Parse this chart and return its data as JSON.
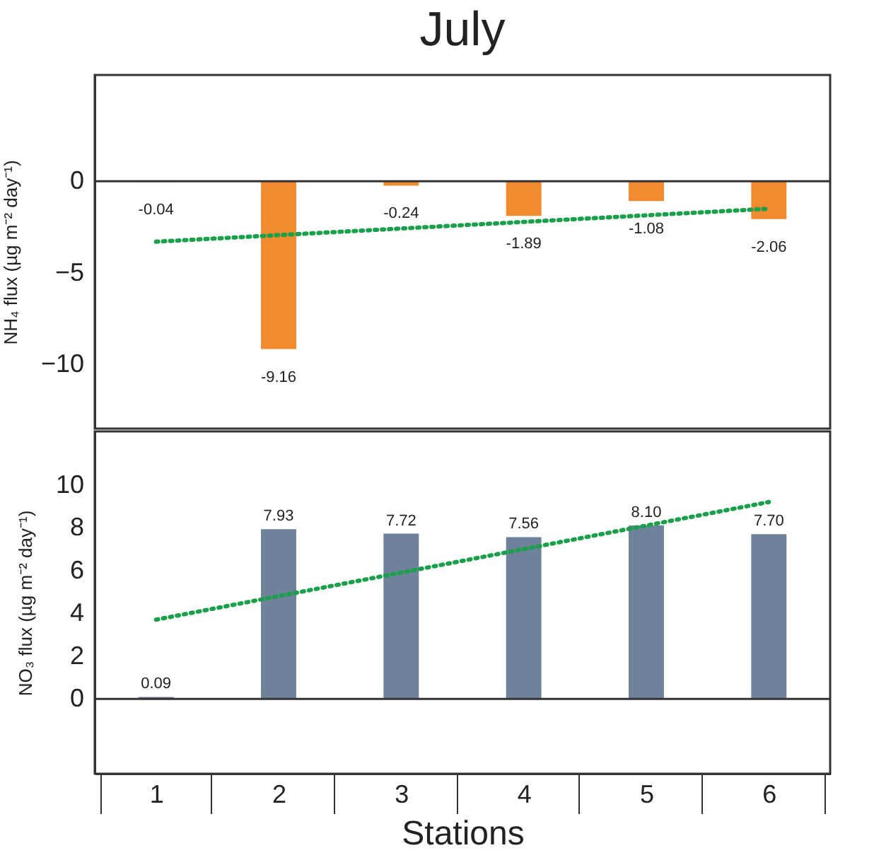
{
  "chart_data": [
    {
      "type": "bar",
      "title": "July",
      "ylabel": "NH₄ flux (µg m⁻² day⁻¹)",
      "categories": [
        "1",
        "2",
        "3",
        "4",
        "5",
        "6"
      ],
      "ylim": [
        -13.5,
        5.8
      ],
      "yticks": [
        -10,
        -5,
        0
      ],
      "tick_labels": "y",
      "grid": false,
      "series": [
        {
          "color": "#f28a30",
          "values": [
            -0.04,
            -9.16,
            -0.24,
            -1.89,
            -1.08,
            -2.06
          ],
          "value_labels": [
            "-0.04",
            "-9.16",
            "-0.24",
            "-1.89",
            "-1.08",
            "-2.06"
          ]
        },
        {
          "type": "line",
          "color": "#1aa04a",
          "line_style": "dotted",
          "marker": "none",
          "x": [
            "1",
            "6"
          ],
          "values": [
            -3.3,
            -1.5
          ]
        }
      ],
      "ref_lines": [
        {
          "axis": "y",
          "value": 0,
          "color": "#333333"
        }
      ]
    },
    {
      "type": "bar",
      "xlabel": "Stations",
      "ylabel": "NO₃ flux (µg m⁻² day⁻¹)",
      "categories": [
        "1",
        "2",
        "3",
        "4",
        "5",
        "6"
      ],
      "ylim": [
        -3.5,
        12.5
      ],
      "yticks": [
        0,
        2,
        4,
        6,
        8,
        10
      ],
      "grid": false,
      "series": [
        {
          "color": "#6e829c",
          "values": [
            0.09,
            7.93,
            7.72,
            7.56,
            8.1,
            7.7
          ],
          "value_labels": [
            "0.09",
            "7.93",
            "7.72",
            "7.56",
            "8.10",
            "7.70"
          ]
        },
        {
          "type": "line",
          "color": "#1aa04a",
          "line_style": "dotted",
          "marker": "none",
          "x": [
            "1",
            "6"
          ],
          "values": [
            3.7,
            9.2
          ]
        }
      ],
      "ref_lines": [
        {
          "axis": "y",
          "value": 0,
          "color": "#333333"
        }
      ]
    }
  ]
}
